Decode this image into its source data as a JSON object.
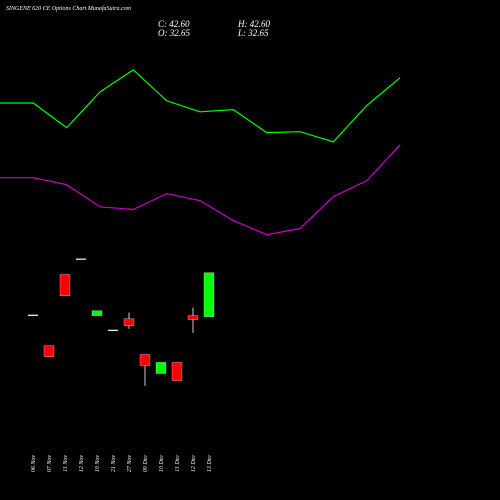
{
  "chart_data": [
    {
      "type": "candlestick",
      "title": "SINGENE 620 CE Options Chart MunafaSutra.com",
      "summary": [
        "C: 42.60",
        "H: 42.60",
        "O: 32.65",
        "L: 32.65"
      ],
      "categories": [
        "06 Nov",
        "07 Nov",
        "11 Nov",
        "12 Nov",
        "19 Nov",
        "21 Nov",
        "27 Nov",
        "09 Dec",
        "10 Dec",
        "11 Dec",
        "12 Dec",
        "13 Dec"
      ],
      "open": [
        33.1,
        26.1,
        42.2,
        45.8,
        32.9,
        29.7,
        32.2,
        24.1,
        19.8,
        22.3,
        32.9,
        32.65
      ],
      "high": [
        33.1,
        26.1,
        42.2,
        45.8,
        34.0,
        29.7,
        33.6,
        24.1,
        22.3,
        22.3,
        34.7,
        42.6
      ],
      "low": [
        33.1,
        23.6,
        37.4,
        45.8,
        32.9,
        29.7,
        29.9,
        17.0,
        19.8,
        18.2,
        29.0,
        32.65
      ],
      "close": [
        33.1,
        23.6,
        37.4,
        45.8,
        34.0,
        29.7,
        30.6,
        21.6,
        22.3,
        18.2,
        32.0,
        42.6
      ],
      "up_color": "#00ff00",
      "down_color": "#ff0000",
      "flat_color": "#ffffff",
      "ylim": [
        0,
        100
      ]
    },
    {
      "type": "line",
      "series": [
        {
          "color": "#00ff00",
          "values": [
            81.0,
            81.0,
            75.4,
            83.5,
            88.5,
            81.5,
            79.0,
            79.5,
            74.3,
            74.5,
            72.2,
            80.4,
            86.7
          ]
        },
        {
          "color": "#cc00cc",
          "values": [
            64.1,
            64.1,
            62.5,
            57.5,
            56.9,
            60.5,
            58.9,
            54.4,
            51.2,
            52.6,
            59.8,
            63.4,
            71.5
          ]
        }
      ],
      "ylim": [
        0,
        100
      ]
    }
  ]
}
